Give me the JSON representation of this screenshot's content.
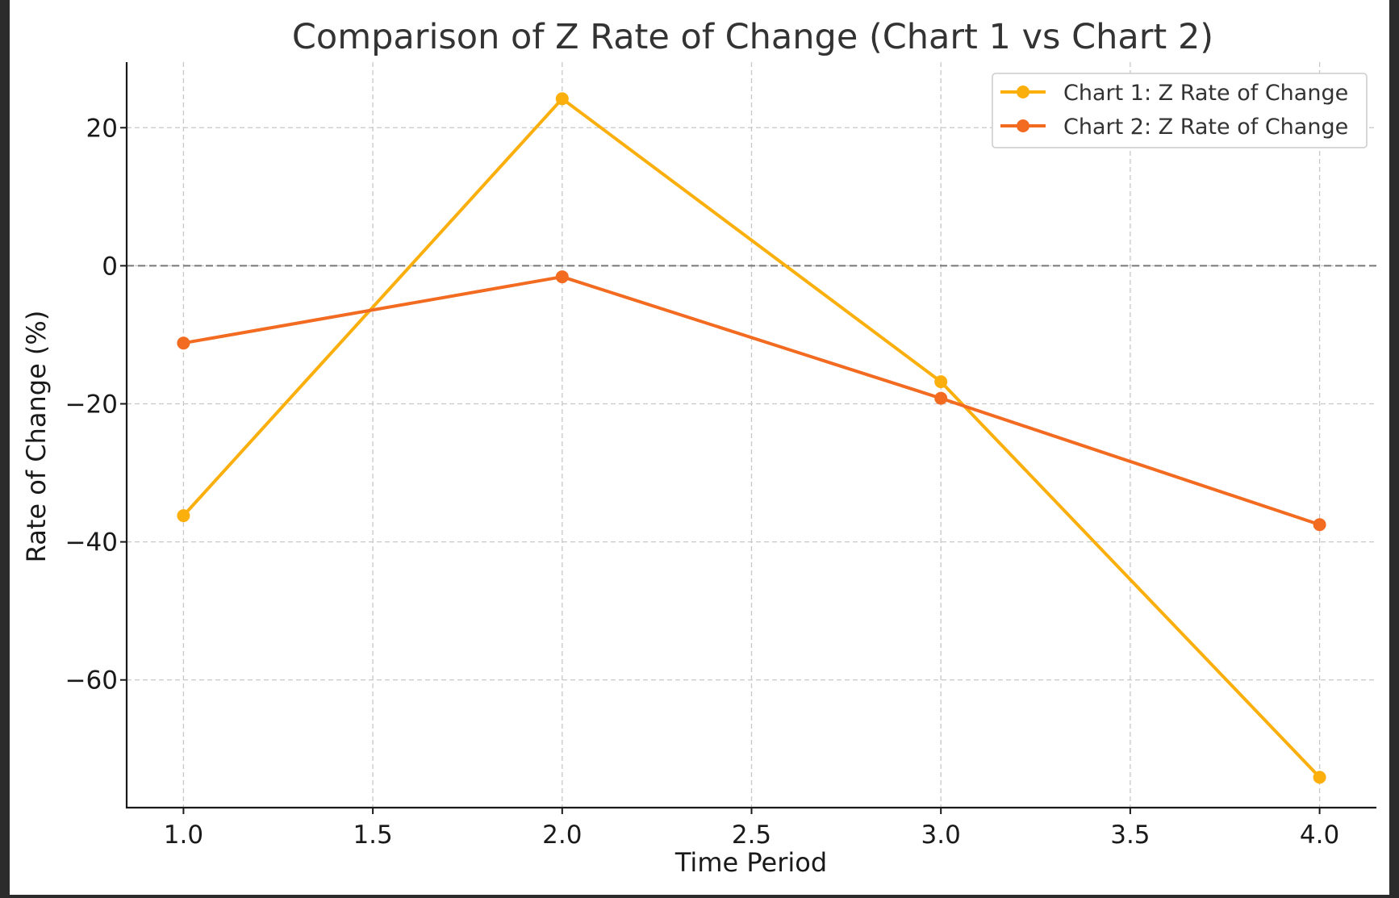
{
  "chart_data": {
    "type": "line",
    "title": "Comparison of Z Rate of Change (Chart 1 vs Chart 2)",
    "xlabel": "Time Period",
    "ylabel": "Rate of Change (%)",
    "x": [
      1.0,
      2.0,
      3.0,
      4.0
    ],
    "xlim": [
      0.85,
      4.15
    ],
    "ylim": [
      -78.5,
      29.5
    ],
    "xticks": [
      1.0,
      1.5,
      2.0,
      2.5,
      3.0,
      3.5,
      4.0
    ],
    "xtick_labels": [
      "1.0",
      "1.5",
      "2.0",
      "2.5",
      "3.0",
      "3.5",
      "4.0"
    ],
    "yticks": [
      20,
      0,
      -20,
      -40,
      -60
    ],
    "ytick_labels": [
      "20",
      "0",
      "−20",
      "−40",
      "−60"
    ],
    "grid": true,
    "zero_reference_line": 0,
    "legend_position": "top-right",
    "series": [
      {
        "name": "Chart 1: Z Rate of Change",
        "color": "#FBAF0C",
        "marker": "circle",
        "values": [
          -36.2,
          24.2,
          -16.8,
          -74.1
        ]
      },
      {
        "name": "Chart 2: Z Rate of Change",
        "color": "#F26B21",
        "marker": "circle",
        "values": [
          -11.2,
          -1.6,
          -19.2,
          -37.5
        ]
      }
    ]
  }
}
